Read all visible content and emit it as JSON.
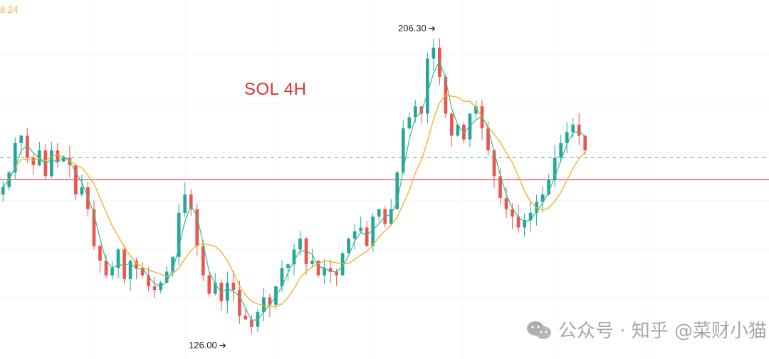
{
  "chart_data": {
    "type": "candlestick",
    "title": "SOL 4H",
    "ma_readout": "8.24",
    "high_label": "206.30",
    "low_label": "126.00",
    "resistance_level": 168,
    "dashed_level": 174,
    "y_range": [
      120,
      215
    ],
    "colors": {
      "up": "#26a69a",
      "down": "#ef5350",
      "fast_ma": "#2bbf8f",
      "slow_ma": "#f0b429",
      "resistance": "#e53935",
      "dashed": "#4db6ac",
      "title": "#e0312f"
    },
    "closes": [
      166,
      170,
      178,
      180,
      174,
      172,
      176,
      169,
      176,
      173,
      174,
      172,
      164,
      166,
      160,
      150,
      146,
      142,
      144,
      149,
      141,
      146,
      144,
      142,
      139,
      138,
      140,
      143,
      147,
      159,
      164,
      160,
      150,
      142,
      137,
      140,
      135,
      140,
      138,
      131,
      130,
      128,
      132,
      136,
      134,
      139,
      144,
      145,
      149,
      152,
      145,
      146,
      142,
      144,
      143,
      142,
      148,
      152,
      154,
      155,
      150,
      158,
      160,
      156,
      160,
      170,
      182,
      185,
      188,
      186,
      201,
      204,
      196,
      186,
      180,
      183,
      179,
      186,
      188,
      182,
      176,
      169,
      163,
      160,
      158,
      155,
      157,
      159,
      162,
      164,
      168,
      174,
      178,
      181,
      183,
      180,
      176
    ],
    "watermark": "公众号 · 知乎 @菜财小猫"
  }
}
